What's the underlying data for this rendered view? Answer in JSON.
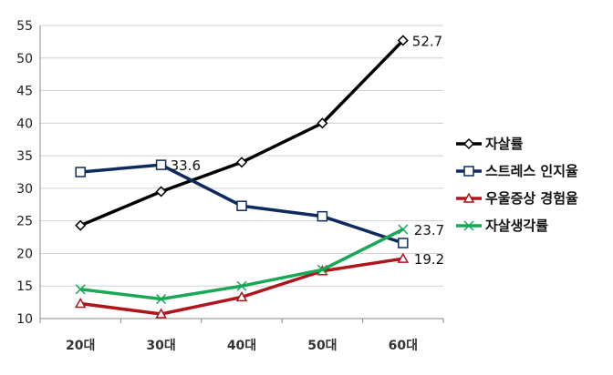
{
  "chart_data": {
    "type": "line",
    "categories": [
      "20대",
      "30대",
      "40대",
      "50대",
      "60대"
    ],
    "ylim": [
      10,
      55
    ],
    "yticks": [
      10,
      15,
      20,
      25,
      30,
      35,
      40,
      45,
      50,
      55
    ],
    "grid": "horizontal",
    "legend_position": "right",
    "series": [
      {
        "name": "자살률",
        "color": "#000000",
        "marker": "diamond",
        "values": [
          24.3,
          29.5,
          34.0,
          40.0,
          52.7
        ],
        "labels": [
          null,
          null,
          null,
          null,
          "52.7"
        ]
      },
      {
        "name": "스트레스 인지율",
        "color": "#0d2b5e",
        "marker": "square",
        "values": [
          32.5,
          33.6,
          27.3,
          25.7,
          21.6
        ],
        "labels": [
          null,
          "33.6",
          null,
          null,
          null
        ]
      },
      {
        "name": "우울증상 경험율",
        "color": "#b0141c",
        "marker": "triangle",
        "values": [
          12.3,
          10.7,
          13.3,
          17.3,
          19.2
        ],
        "labels": [
          null,
          null,
          null,
          null,
          "19.2"
        ]
      },
      {
        "name": "자살생각률",
        "color": "#19a855",
        "marker": "x",
        "values": [
          14.5,
          13.0,
          15.0,
          17.5,
          23.7
        ],
        "labels": [
          null,
          null,
          null,
          null,
          "23.7"
        ]
      }
    ]
  }
}
